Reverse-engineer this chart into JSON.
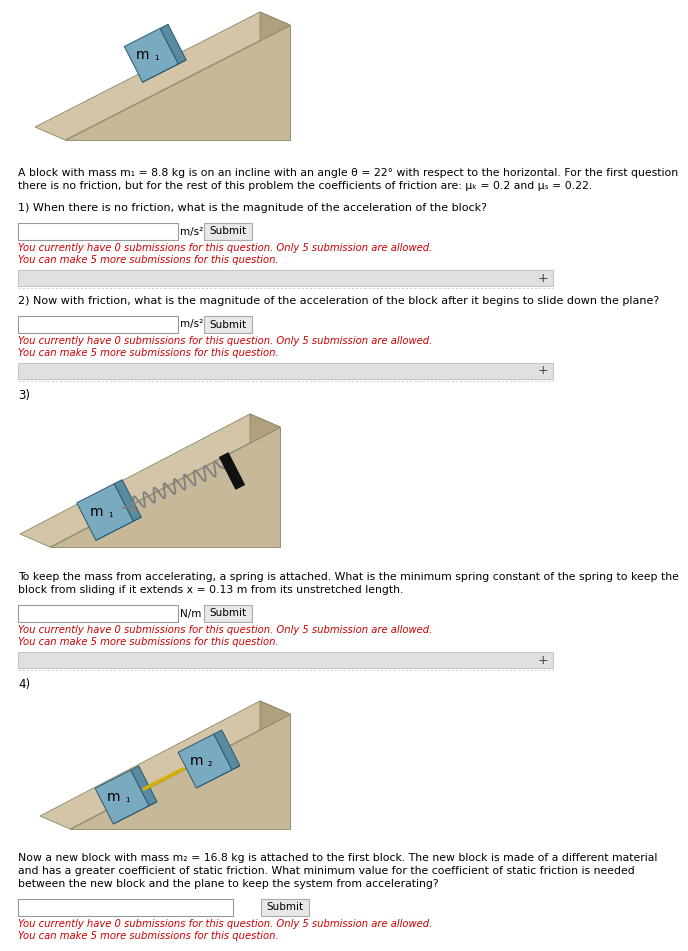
{
  "bg_color": "#ffffff",
  "intro_text_line1": "A block with mass m₁ = 8.8 kg is on an incline with an angle θ = 22° with respect to the horizontal. For the first question",
  "intro_text_line2": "there is no friction, but for the rest of this problem the coefficients of friction are: μₖ = 0.2 and μₛ = 0.22.",
  "q1_text": "1) When there is no friction, what is the magnitude of the acceleration of the block?",
  "q1_unit": "m/s²",
  "q2_text": "2) Now with friction, what is the magnitude of the acceleration of the block after it begins to slide down the plane?",
  "q2_unit": "m/s²",
  "q3_label": "3)",
  "q3_text_line1": "To keep the mass from accelerating, a spring is attached. What is the minimum spring constant of the spring to keep the",
  "q3_text_line2": "block from sliding if it extends x = 0.13 m from its unstretched length.",
  "q3_unit": "N/m",
  "q4_label": "4)",
  "q4_text_line1": "Now a new block with mass m₂ = 16.8 kg is attached to the first block. The new block is made of a different material",
  "q4_text_line2": "and has a greater coefficient of static friction. What minimum value for the coefficient of static friction is needed",
  "q4_text_line3": "between the new block and the plane to keep the system from accelerating?",
  "submit_text": "Submit",
  "submission_line1": "You currently have 0 submissions for this question. Only 5 submission are allowed.",
  "submission_line2": "You can make 5 more submissions for this question.",
  "red_color": "#cc0000",
  "text_color": "#000000",
  "incline_front": "#c8b89a",
  "incline_right": "#b0a080",
  "incline_top": "#d4c4a8",
  "block_front": "#7aaabf",
  "block_side": "#5a8a9f",
  "block_top": "#8abacf"
}
